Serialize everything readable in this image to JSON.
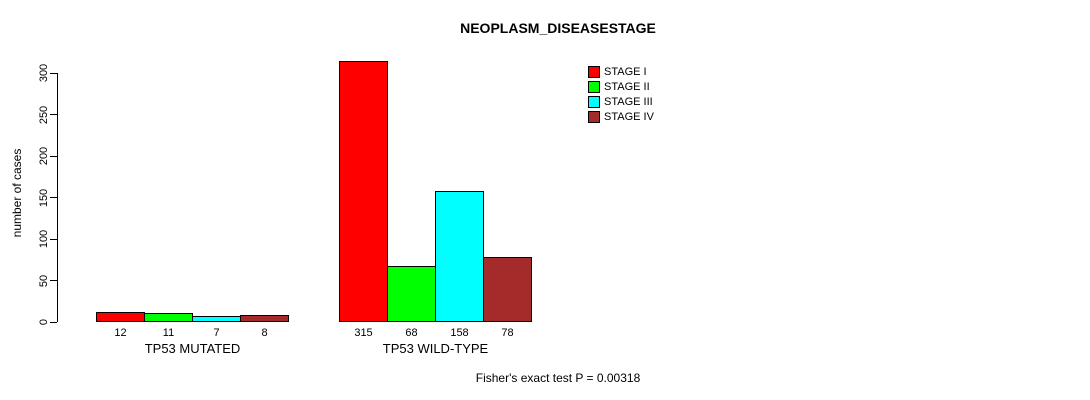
{
  "chart_data": {
    "type": "bar",
    "title": "NEOPLASM_DISEASESTAGE",
    "ylabel": "number of cases",
    "xlabel": "",
    "ylim": [
      0,
      300
    ],
    "yticks": [
      0,
      50,
      100,
      150,
      200,
      250,
      300
    ],
    "grid": false,
    "legend_position": "top-right",
    "bar_value_labels_shown": true,
    "categories": [
      "TP53 MUTATED",
      "TP53 WILD-TYPE"
    ],
    "series": [
      {
        "name": "STAGE I",
        "color": "#ff0000",
        "values": [
          12,
          315
        ]
      },
      {
        "name": "STAGE II",
        "color": "#00ff00",
        "values": [
          11,
          68
        ]
      },
      {
        "name": "STAGE III",
        "color": "#00ffff",
        "values": [
          7,
          158
        ]
      },
      {
        "name": "STAGE IV",
        "color": "#a52a2a",
        "values": [
          8,
          78
        ]
      }
    ],
    "footnote": "Fisher's exact test P = 0.00318",
    "colors": {
      "axis": "#000000",
      "bar_border": "#000000",
      "background": "#ffffff",
      "text": "#000000"
    }
  }
}
